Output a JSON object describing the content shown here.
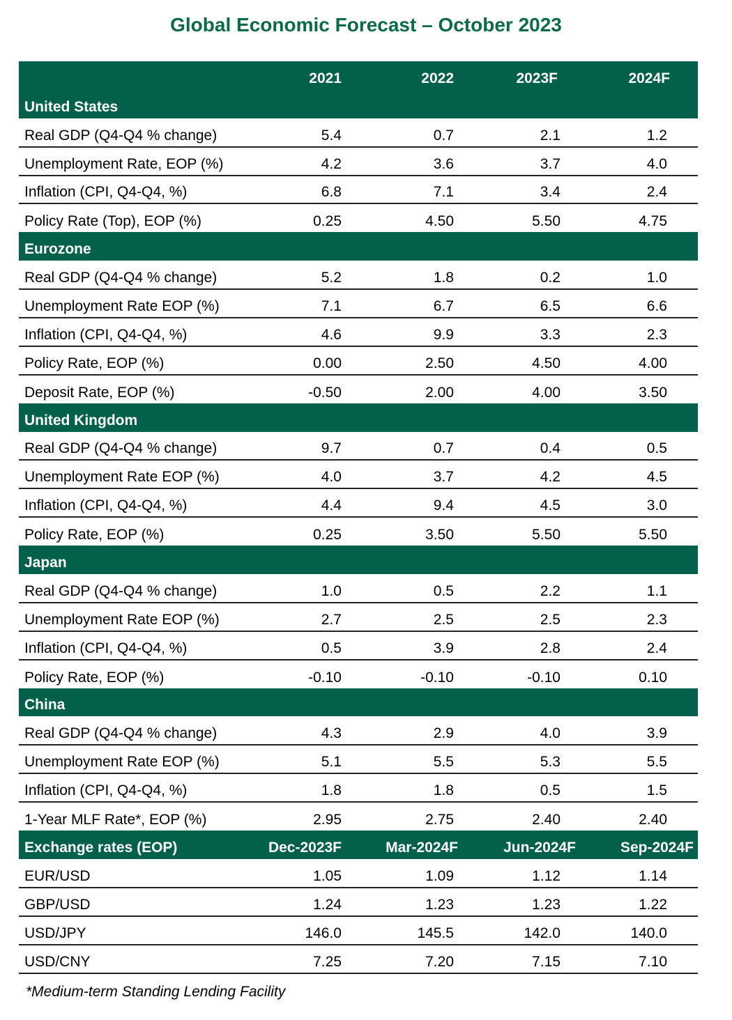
{
  "title": "Global Economic Forecast – October 2023",
  "header": {
    "label": "",
    "cols": [
      "2021",
      "2022",
      "2023F",
      "2024F"
    ]
  },
  "sections": [
    {
      "name": "United States",
      "rows": [
        {
          "label": "Real GDP (Q4-Q4 % change)",
          "values": [
            "5.4",
            "0.7",
            "2.1",
            "1.2"
          ]
        },
        {
          "label": "Unemployment Rate, EOP (%)",
          "values": [
            "4.2",
            "3.6",
            "3.7",
            "4.0"
          ]
        },
        {
          "label": "Inflation (CPI, Q4-Q4, %)",
          "values": [
            "6.8",
            "7.1",
            "3.4",
            "2.4"
          ]
        },
        {
          "label": "Policy Rate (Top), EOP (%)",
          "values": [
            "0.25",
            "4.50",
            "5.50",
            "4.75"
          ]
        }
      ]
    },
    {
      "name": "Eurozone",
      "rows": [
        {
          "label": "Real GDP (Q4-Q4 % change)",
          "values": [
            "5.2",
            "1.8",
            "0.2",
            "1.0"
          ]
        },
        {
          "label": "Unemployment Rate EOP (%)",
          "values": [
            "7.1",
            "6.7",
            "6.5",
            "6.6"
          ]
        },
        {
          "label": "Inflation (CPI, Q4-Q4, %)",
          "values": [
            "4.6",
            "9.9",
            "3.3",
            "2.3"
          ]
        },
        {
          "label": "Policy Rate, EOP (%)",
          "values": [
            "0.00",
            "2.50",
            "4.50",
            "4.00"
          ]
        },
        {
          "label": "Deposit Rate, EOP (%)",
          "values": [
            "-0.50",
            "2.00",
            "4.00",
            "3.50"
          ]
        }
      ]
    },
    {
      "name": "United Kingdom",
      "rows": [
        {
          "label": "Real GDP (Q4-Q4 % change)",
          "values": [
            "9.7",
            "0.7",
            "0.4",
            "0.5"
          ]
        },
        {
          "label": "Unemployment Rate EOP (%)",
          "values": [
            "4.0",
            "3.7",
            "4.2",
            "4.5"
          ]
        },
        {
          "label": "Inflation (CPI, Q4-Q4, %)",
          "values": [
            "4.4",
            "9.4",
            "4.5",
            "3.0"
          ]
        },
        {
          "label": "Policy Rate, EOP (%)",
          "values": [
            "0.25",
            "3.50",
            "5.50",
            "5.50"
          ]
        }
      ]
    },
    {
      "name": "Japan",
      "rows": [
        {
          "label": "Real GDP (Q4-Q4 % change)",
          "values": [
            "1.0",
            "0.5",
            "2.2",
            "1.1"
          ]
        },
        {
          "label": "Unemployment Rate EOP (%)",
          "values": [
            "2.7",
            "2.5",
            "2.5",
            "2.3"
          ]
        },
        {
          "label": "Inflation (CPI, Q4-Q4, %)",
          "values": [
            "0.5",
            "3.9",
            "2.8",
            "2.4"
          ]
        },
        {
          "label": "Policy Rate, EOP (%)",
          "values": [
            "-0.10",
            "-0.10",
            "-0.10",
            "0.10"
          ]
        }
      ]
    },
    {
      "name": "China",
      "rows": [
        {
          "label": "Real GDP (Q4-Q4 % change)",
          "values": [
            "4.3",
            "2.9",
            "4.0",
            "3.9"
          ]
        },
        {
          "label": "Unemployment Rate EOP (%)",
          "values": [
            "5.1",
            "5.5",
            "5.3",
            "5.5"
          ]
        },
        {
          "label": "Inflation (CPI, Q4-Q4, %)",
          "values": [
            "1.8",
            "1.8",
            "0.5",
            "1.5"
          ]
        },
        {
          "label": "1-Year MLF Rate*, EOP (%)",
          "values": [
            "2.95",
            "2.75",
            "2.40",
            "2.40"
          ]
        }
      ]
    }
  ],
  "fx": {
    "title": "Exchange rates (EOP)",
    "cols": [
      "Dec-2023F",
      "Mar-2024F",
      "Jun-2024F",
      "Sep-2024F"
    ],
    "rows": [
      {
        "label": "EUR/USD",
        "values": [
          "1.05",
          "1.09",
          "1.12",
          "1.14"
        ]
      },
      {
        "label": "GBP/USD",
        "values": [
          "1.24",
          "1.23",
          "1.23",
          "1.22"
        ]
      },
      {
        "label": "USD/JPY",
        "values": [
          "146.0",
          "145.5",
          "142.0",
          "140.0"
        ]
      },
      {
        "label": "USD/CNY",
        "values": [
          "7.25",
          "7.20",
          "7.15",
          "7.10"
        ]
      }
    ]
  },
  "footnote": "*Medium-term Standing Lending Facility",
  "colors": {
    "brand_green": "#03604a",
    "title_green": "#0b6b45"
  }
}
